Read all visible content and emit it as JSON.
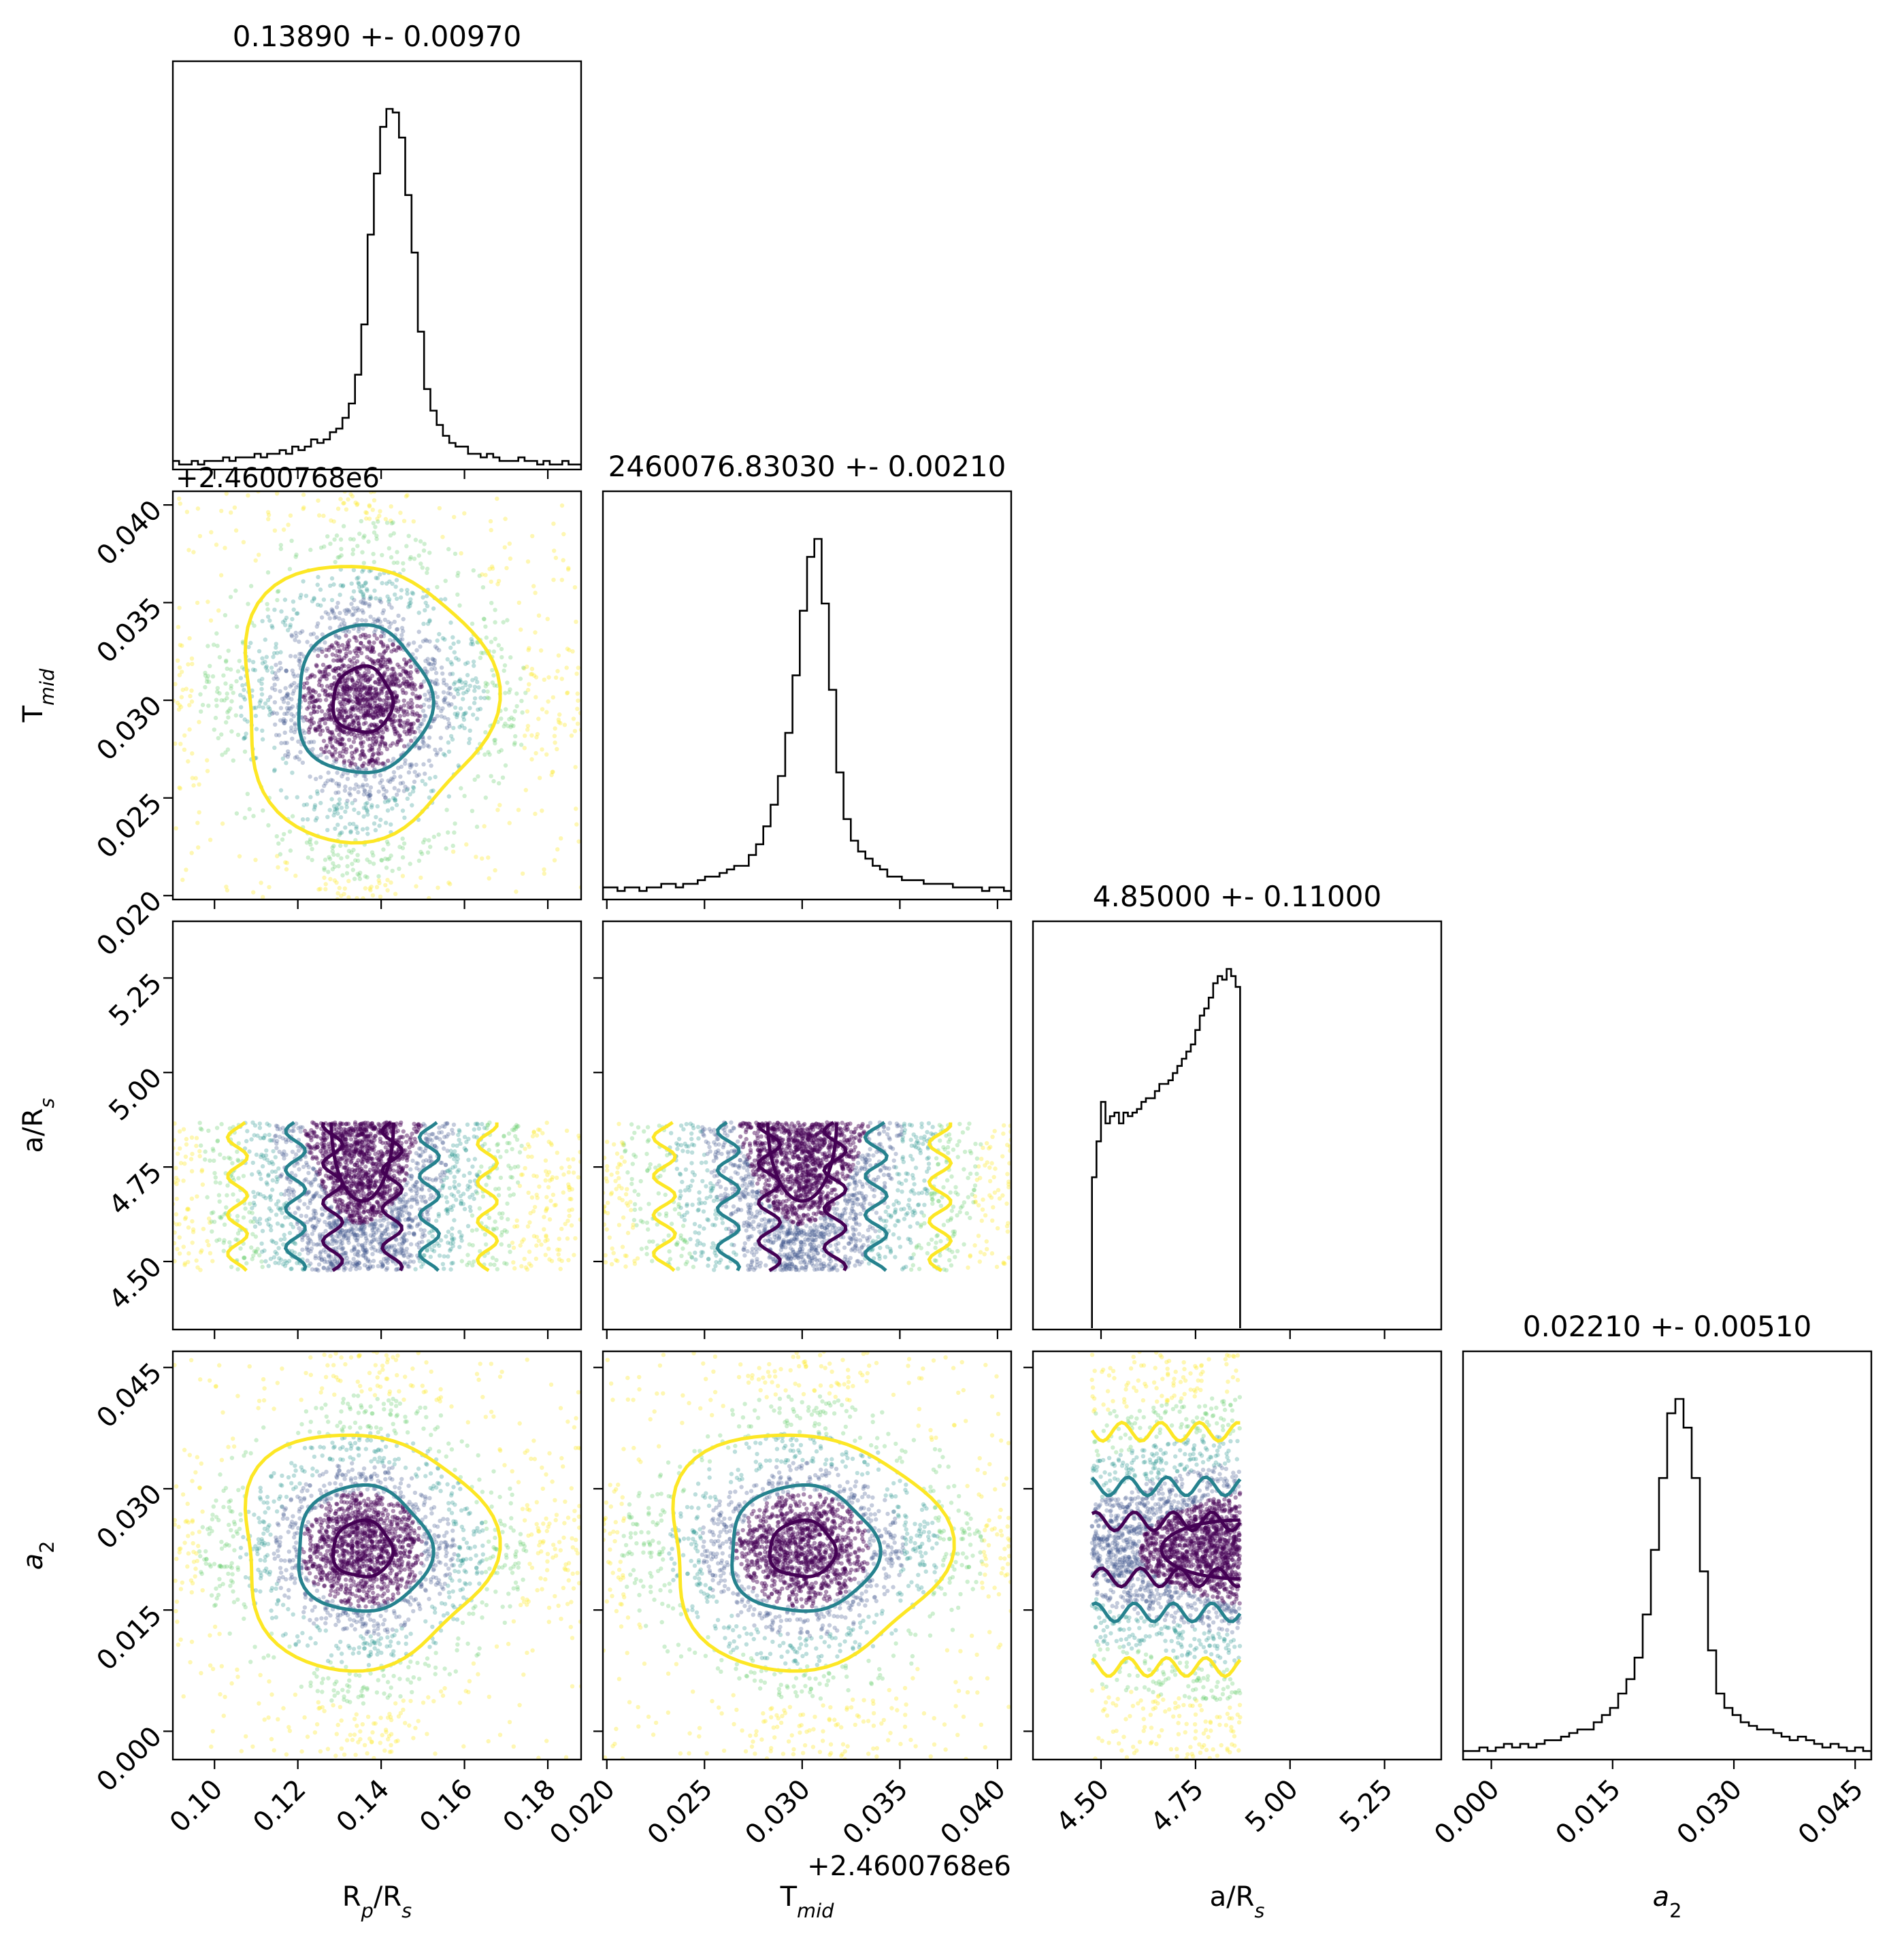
{
  "chart_data": {
    "type": "corner",
    "parameters": [
      {
        "key": "rp",
        "label": "R_p/R_s",
        "title": "0.13890 +- 0.00970",
        "range": [
          0.09,
          0.188
        ],
        "ticks": [
          "0.10",
          "0.12",
          "0.14",
          "0.16",
          "0.18"
        ],
        "tick_values": [
          0.1,
          0.12,
          0.14,
          0.16,
          0.18
        ],
        "offset_text": "",
        "hist": {
          "x_start": 0.09,
          "x_end": 0.188,
          "values": [
            2,
            1,
            1,
            2,
            1,
            2,
            2,
            2,
            3,
            2,
            3,
            3,
            3,
            4,
            3,
            4,
            4,
            5,
            4,
            6,
            5,
            6,
            8,
            7,
            8,
            10,
            11,
            14,
            18,
            26,
            40,
            65,
            82,
            95,
            100,
            99,
            92,
            76,
            60,
            38,
            22,
            16,
            12,
            9,
            7,
            6,
            6,
            4,
            4,
            3,
            4,
            3,
            2,
            2,
            2,
            3,
            2,
            2,
            1,
            2,
            1,
            1,
            2,
            1,
            1
          ]
        }
      },
      {
        "key": "tmid",
        "label": "T_mid",
        "title": "2460076.83030 +- 0.00210",
        "range": [
          0.0198,
          0.0407
        ],
        "ticks": [
          "0.020",
          "0.025",
          "0.030",
          "0.035",
          "0.040"
        ],
        "tick_values": [
          0.02,
          0.025,
          0.03,
          0.035,
          0.04
        ],
        "offset_text": "+2.4600768e6",
        "hist": {
          "x_start": 0.0198,
          "x_end": 0.0407,
          "values": [
            3,
            3,
            2,
            3,
            3,
            2,
            3,
            3,
            4,
            4,
            3,
            4,
            4,
            5,
            6,
            6,
            7,
            8,
            9,
            9,
            12,
            15,
            20,
            26,
            34,
            46,
            62,
            80,
            95,
            100,
            82,
            58,
            35,
            22,
            16,
            13,
            11,
            9,
            8,
            6,
            6,
            5,
            5,
            5,
            4,
            4,
            4,
            4,
            3,
            3,
            3,
            3,
            2,
            3,
            3,
            2
          ]
        }
      },
      {
        "key": "ars",
        "label": "a/R_s",
        "title": "4.85000 +- 0.11000",
        "range": [
          4.32,
          5.4
        ],
        "ticks": [
          "4.50",
          "4.75",
          "5.00",
          "5.25"
        ],
        "tick_values": [
          4.5,
          4.75,
          5.0,
          5.25
        ],
        "offset_text": "",
        "hist": {
          "x_start": 4.476,
          "x_end": 4.868,
          "values": [
            42,
            52,
            63,
            57,
            59,
            60,
            57,
            60,
            59,
            60,
            61,
            63,
            64,
            64,
            66,
            68,
            68,
            69,
            71,
            73,
            75,
            77,
            79,
            83,
            87,
            89,
            92,
            96,
            98,
            97,
            100,
            98,
            95
          ]
        }
      },
      {
        "key": "a2",
        "label": "a_2",
        "title": "0.02210 +- 0.00510",
        "range": [
          -0.0035,
          0.047
        ],
        "ticks": [
          "0.000",
          "0.015",
          "0.030",
          "0.045"
        ],
        "tick_values": [
          0.0,
          0.015,
          0.03,
          0.045
        ],
        "offset_text": "",
        "hist": {
          "x_start": -0.0035,
          "x_end": 0.047,
          "values": [
            2,
            2,
            3,
            2,
            3,
            4,
            3,
            4,
            3,
            4,
            5,
            5,
            6,
            7,
            8,
            8,
            10,
            12,
            14,
            18,
            22,
            28,
            40,
            58,
            78,
            96,
            100,
            92,
            78,
            52,
            30,
            18,
            14,
            12,
            10,
            9,
            8,
            8,
            7,
            6,
            5,
            6,
            5,
            4,
            3,
            4,
            3,
            2,
            3,
            2
          ]
        }
      }
    ],
    "scatter": {
      "points_per_panel": 2600,
      "colormap": [
        "#440154",
        "#3b528b",
        "#21918c",
        "#5ec962",
        "#fde725"
      ]
    },
    "contour_colors": [
      "#440154",
      "#26828e",
      "#fde725"
    ]
  }
}
